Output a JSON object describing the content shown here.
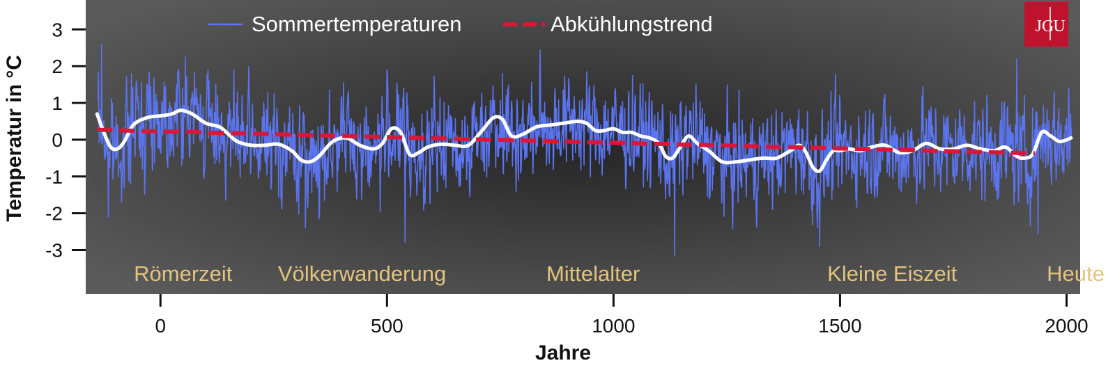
{
  "chart_data": {
    "type": "line",
    "title": "",
    "xlabel": "Jahre",
    "ylabel": "Temperatur in °C",
    "xlim": [
      -165,
      2030
    ],
    "ylim": [
      -4.2,
      3.8
    ],
    "x_ticks": [
      0,
      500,
      1000,
      1500,
      2000
    ],
    "y_ticks": [
      3,
      2,
      1,
      0,
      -1,
      -2,
      -3
    ],
    "y_tick_labels": [
      "3",
      "2",
      "1",
      "0",
      "-1",
      "-2",
      "-3"
    ],
    "legend": {
      "position": "top",
      "entries": [
        "Sommertemperaturen",
        "Abkühlungstrend"
      ]
    },
    "series": [
      {
        "name": "Sommertemperaturen",
        "style": "thin-line",
        "color": "#5b74f0",
        "x_start": -138,
        "x_end": 2011,
        "y_min": -3.15,
        "y_max": 2.6,
        "peaks": [
          [
            -130,
            2.6
          ],
          [
            500,
            1.9
          ],
          [
            755,
            1.8
          ],
          [
            1890,
            2.2
          ],
          [
            2005,
            1.4
          ]
        ],
        "troughs": [
          [
            -115,
            -2.1
          ],
          [
            320,
            -2.4
          ],
          [
            540,
            -2.8
          ],
          [
            1135,
            -3.15
          ],
          [
            1455,
            -2.9
          ],
          [
            1937,
            -2.55
          ]
        ]
      },
      {
        "name": "",
        "style": "smoothed",
        "color": "#ffffff",
        "x": [
          -140,
          -125,
          -110,
          -95,
          -80,
          -60,
          -30,
          0,
          25,
          45,
          70,
          100,
          130,
          150,
          170,
          200,
          230,
          260,
          290,
          310,
          330,
          350,
          380,
          410,
          440,
          470,
          490,
          510,
          530,
          550,
          570,
          590,
          620,
          650,
          680,
          710,
          735,
          755,
          775,
          800,
          830,
          860,
          890,
          920,
          940,
          960,
          980,
          1000,
          1020,
          1040,
          1060,
          1080,
          1100,
          1115,
          1130,
          1145,
          1165,
          1185,
          1210,
          1240,
          1270,
          1300,
          1330,
          1360,
          1390,
          1410,
          1425,
          1440,
          1455,
          1470,
          1485,
          1500,
          1520,
          1545,
          1570,
          1600,
          1630,
          1660,
          1690,
          1720,
          1750,
          1780,
          1810,
          1840,
          1865,
          1890,
          1905,
          1925,
          1945,
          1965,
          1985,
          2010
        ],
        "y": [
          0.7,
          0.2,
          -0.2,
          -0.25,
          -0.05,
          0.4,
          0.6,
          0.65,
          0.7,
          0.8,
          0.7,
          0.45,
          0.35,
          0.15,
          -0.05,
          -0.15,
          -0.15,
          -0.12,
          -0.3,
          -0.55,
          -0.6,
          -0.45,
          -0.05,
          0.05,
          -0.15,
          -0.25,
          -0.1,
          0.3,
          0.2,
          -0.4,
          -0.35,
          -0.2,
          -0.12,
          -0.15,
          -0.15,
          0.25,
          0.6,
          0.55,
          0.1,
          0.15,
          0.35,
          0.4,
          0.45,
          0.5,
          0.45,
          0.25,
          0.25,
          0.3,
          0.2,
          0.2,
          0.1,
          0.05,
          -0.1,
          -0.45,
          -0.5,
          -0.25,
          0.1,
          -0.1,
          -0.3,
          -0.6,
          -0.6,
          -0.55,
          -0.5,
          -0.5,
          -0.3,
          -0.15,
          -0.35,
          -0.75,
          -0.85,
          -0.55,
          -0.3,
          -0.3,
          -0.25,
          -0.3,
          -0.2,
          -0.15,
          -0.35,
          -0.3,
          -0.1,
          -0.25,
          -0.25,
          -0.15,
          -0.25,
          -0.3,
          -0.2,
          -0.45,
          -0.5,
          -0.4,
          0.2,
          0.1,
          -0.05,
          0.05
        ]
      },
      {
        "name": "Abkühlungstrend",
        "style": "dashed",
        "color": "#d8183a",
        "x": [
          -140,
          1930
        ],
        "y": [
          0.27,
          -0.37
        ]
      }
    ],
    "annotations": [
      {
        "text": "Römerzeit",
        "x": 50
      },
      {
        "text": "Völkerwanderung",
        "x": 445
      },
      {
        "text": "Mittelalter",
        "x": 955
      },
      {
        "text": "Kleine Eiszeit",
        "x": 1615
      },
      {
        "text": "Heute",
        "x": 2020
      }
    ]
  },
  "logo": {
    "text": "JG|U",
    "left": "JG",
    "right": "U"
  },
  "colors": {
    "panel_edge": "#5a5a5a",
    "panel_center": "#262626",
    "era_label": "#e3c47c",
    "logo_bg": "#c0122c"
  }
}
